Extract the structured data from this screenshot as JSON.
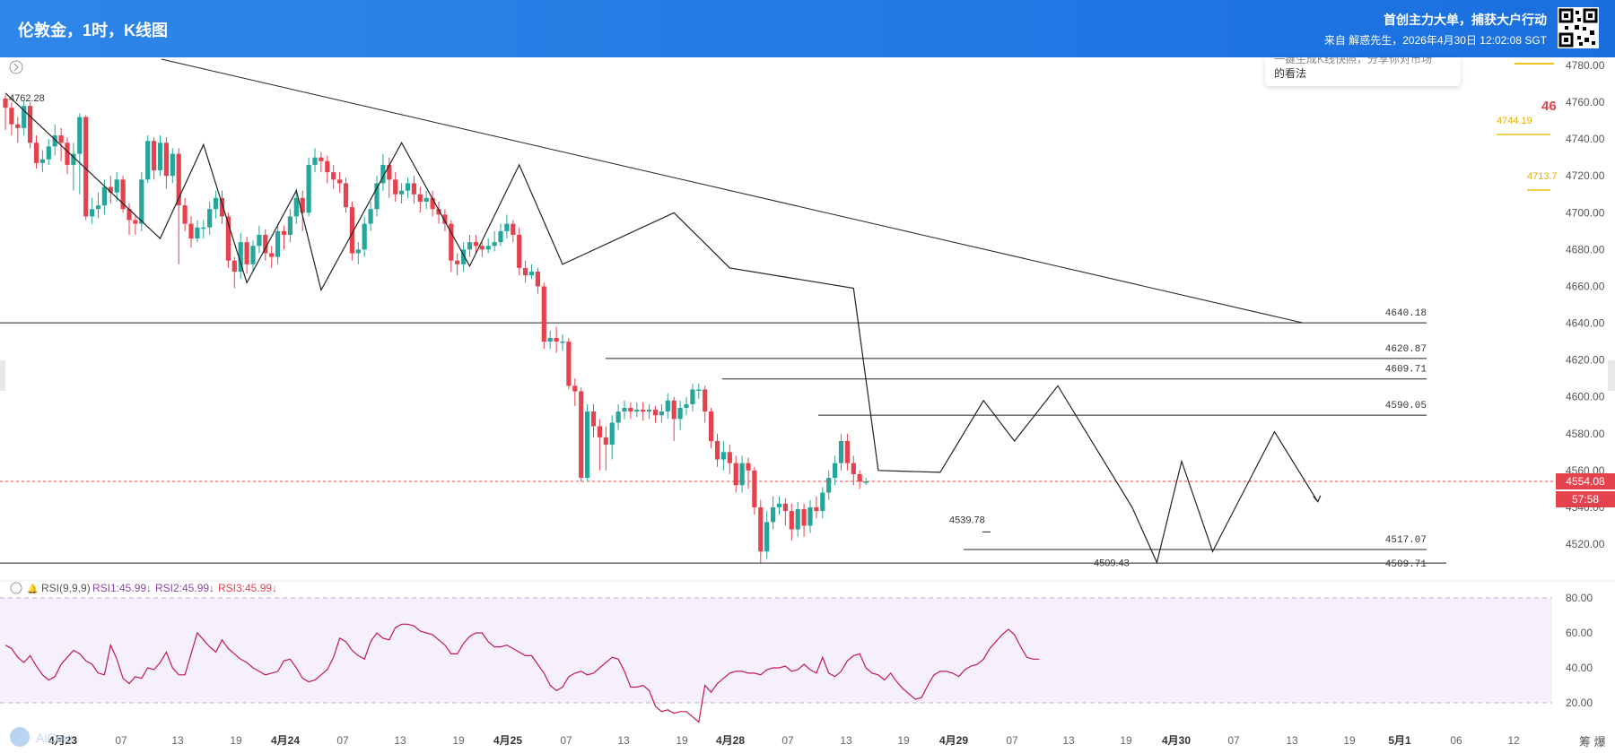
{
  "header": {
    "title": "伦敦金，1时，K线图",
    "promo": "首创主力大单，捕获大户行动",
    "source": "来自 解惑先生，2026年4月30日 12:02:08 SGT"
  },
  "popup": {
    "line1": "一键生成K线快照，分享你对市场",
    "line2": "的看法"
  },
  "colors": {
    "up": "#26a69a",
    "down": "#e5424e",
    "rsi_line": "#c2185b",
    "rsi_band": "#f5f0fb",
    "price_tag": "#e5424e"
  },
  "chart_data": [
    {
      "type": "candlestick",
      "symbol": "伦敦金",
      "interval": "1时",
      "ylim": [
        4500,
        4790
      ],
      "y_ticks": [
        4520,
        4540,
        4560,
        4580,
        4600,
        4620,
        4640,
        4660,
        4680,
        4700,
        4720,
        4740,
        4760,
        4780
      ],
      "y_tick_labels": [
        "4520.00",
        "4540.00",
        "4560.00",
        "4580.00",
        "4600.00",
        "4620.00",
        "4640.00",
        "4660.00",
        "4680.00",
        "4700.00",
        "4720.00",
        "4740.00",
        "4760.00",
        "4780.00"
      ],
      "x_tick_labels": [
        "4月23",
        "07",
        "13",
        "19",
        "4月24",
        "07",
        "13",
        "19",
        "4月25",
        "07",
        "13",
        "19",
        "4月28",
        "07",
        "13",
        "19",
        "4月29",
        "07",
        "13",
        "19",
        "4月30",
        "07",
        "13",
        "19",
        "5月1",
        "06",
        "12"
      ],
      "candles": [
        [
          4762,
          4757,
          4764,
          4745
        ],
        [
          4757,
          4748,
          4760,
          4742
        ],
        [
          4748,
          4746,
          4752,
          4738
        ],
        [
          4746,
          4758,
          4761,
          4742
        ],
        [
          4758,
          4738,
          4760,
          4735
        ],
        [
          4738,
          4727,
          4742,
          4724
        ],
        [
          4727,
          4729,
          4734,
          4722
        ],
        [
          4729,
          4736,
          4740,
          4726
        ],
        [
          4736,
          4742,
          4748,
          4731
        ],
        [
          4742,
          4738,
          4746,
          4728
        ],
        [
          4738,
          4726,
          4741,
          4721
        ],
        [
          4726,
          4732,
          4738,
          4712
        ],
        [
          4732,
          4752,
          4754,
          4710
        ],
        [
          4752,
          4698,
          4753,
          4696
        ],
        [
          4698,
          4702,
          4708,
          4694
        ],
        [
          4702,
          4704,
          4711,
          4697
        ],
        [
          4704,
          4714,
          4718,
          4699
        ],
        [
          4714,
          4711,
          4720,
          4705
        ],
        [
          4711,
          4718,
          4722,
          4706
        ],
        [
          4718,
          4702,
          4720,
          4700
        ],
        [
          4702,
          4696,
          4705,
          4688
        ],
        [
          4696,
          4694,
          4699,
          4688
        ],
        [
          4694,
          4718,
          4722,
          4690
        ],
        [
          4718,
          4739,
          4742,
          4716
        ],
        [
          4739,
          4723,
          4741,
          4718
        ],
        [
          4723,
          4738,
          4742,
          4720
        ],
        [
          4738,
          4720,
          4741,
          4713
        ],
        [
          4720,
          4732,
          4735,
          4716
        ],
        [
          4732,
          4704,
          4735,
          4672
        ],
        [
          4704,
          4694,
          4708,
          4690
        ],
        [
          4694,
          4686,
          4698,
          4681
        ],
        [
          4686,
          4692,
          4696,
          4684
        ],
        [
          4692,
          4692,
          4696,
          4686
        ],
        [
          4692,
          4702,
          4706,
          4688
        ],
        [
          4702,
          4708,
          4712,
          4697
        ],
        [
          4708,
          4698,
          4712,
          4694
        ],
        [
          4698,
          4674,
          4700,
          4670
        ],
        [
          4674,
          4668,
          4676,
          4659
        ],
        [
          4668,
          4684,
          4689,
          4664
        ],
        [
          4684,
          4672,
          4687,
          4667
        ],
        [
          4672,
          4682,
          4685,
          4668
        ],
        [
          4682,
          4688,
          4693,
          4678
        ],
        [
          4688,
          4678,
          4691,
          4674
        ],
        [
          4678,
          4676,
          4682,
          4670
        ],
        [
          4676,
          4690,
          4694,
          4672
        ],
        [
          4690,
          4688,
          4693,
          4680
        ],
        [
          4688,
          4698,
          4702,
          4684
        ],
        [
          4698,
          4708,
          4713,
          4694
        ],
        [
          4708,
          4700,
          4712,
          4690
        ],
        [
          4700,
          4726,
          4730,
          4698
        ],
        [
          4726,
          4730,
          4735,
          4722
        ],
        [
          4730,
          4728,
          4733,
          4722
        ],
        [
          4728,
          4722,
          4731,
          4716
        ],
        [
          4722,
          4718,
          4726,
          4713
        ],
        [
          4718,
          4716,
          4722,
          4711
        ],
        [
          4716,
          4703,
          4719,
          4700
        ],
        [
          4703,
          4678,
          4706,
          4674
        ],
        [
          4678,
          4680,
          4684,
          4672
        ],
        [
          4680,
          4694,
          4698,
          4676
        ],
        [
          4694,
          4702,
          4706,
          4690
        ],
        [
          4702,
          4716,
          4720,
          4698
        ],
        [
          4716,
          4726,
          4732,
          4712
        ],
        [
          4726,
          4718,
          4730,
          4708
        ],
        [
          4718,
          4710,
          4722,
          4706
        ],
        [
          4710,
          4712,
          4716,
          4705
        ],
        [
          4712,
          4716,
          4719,
          4708
        ],
        [
          4716,
          4710,
          4720,
          4705
        ],
        [
          4710,
          4706,
          4714,
          4700
        ],
        [
          4706,
          4708,
          4712,
          4702
        ],
        [
          4708,
          4702,
          4712,
          4698
        ],
        [
          4702,
          4699,
          4706,
          4694
        ],
        [
          4699,
          4694,
          4702,
          4690
        ],
        [
          4694,
          4674,
          4696,
          4668
        ],
        [
          4674,
          4672,
          4678,
          4666
        ],
        [
          4672,
          4680,
          4684,
          4668
        ],
        [
          4680,
          4684,
          4688,
          4676
        ],
        [
          4684,
          4682,
          4688,
          4678
        ],
        [
          4682,
          4680,
          4684,
          4676
        ],
        [
          4680,
          4682,
          4686,
          4678
        ],
        [
          4682,
          4684,
          4690,
          4679
        ],
        [
          4684,
          4690,
          4694,
          4682
        ],
        [
          4690,
          4694,
          4699,
          4686
        ],
        [
          4694,
          4688,
          4696,
          4684
        ],
        [
          4688,
          4670,
          4692,
          4666
        ],
        [
          4670,
          4666,
          4674,
          4662
        ],
        [
          4666,
          4668,
          4672,
          4664
        ],
        [
          4668,
          4660,
          4670,
          4656
        ],
        [
          4660,
          4630,
          4662,
          4626
        ],
        [
          4630,
          4632,
          4636,
          4626
        ],
        [
          4632,
          4630,
          4638,
          4624
        ],
        [
          4630,
          4630,
          4634,
          4625
        ],
        [
          4630,
          4606,
          4632,
          4604
        ],
        [
          4606,
          4603,
          4610,
          4595
        ],
        [
          4603,
          4556,
          4605,
          4554
        ],
        [
          4556,
          4592,
          4596,
          4554
        ],
        [
          4592,
          4584,
          4596,
          4578
        ],
        [
          4584,
          4578,
          4588,
          4560
        ],
        [
          4578,
          4574,
          4584,
          4560
        ],
        [
          4574,
          4586,
          4590,
          4566
        ],
        [
          4586,
          4592,
          4596,
          4582
        ],
        [
          4592,
          4594,
          4598,
          4588
        ],
        [
          4594,
          4592,
          4597,
          4588
        ],
        [
          4592,
          4593,
          4597,
          4589
        ],
        [
          4593,
          4592,
          4597,
          4587
        ],
        [
          4592,
          4593,
          4596,
          4588
        ],
        [
          4593,
          4590,
          4595,
          4586
        ],
        [
          4590,
          4592,
          4596,
          4586
        ],
        [
          4592,
          4598,
          4602,
          4588
        ],
        [
          4598,
          4588,
          4600,
          4576
        ],
        [
          4588,
          4594,
          4598,
          4582
        ],
        [
          4594,
          4596,
          4600,
          4590
        ],
        [
          4596,
          4604,
          4607,
          4592
        ],
        [
          4604,
          4604,
          4607,
          4599
        ],
        [
          4604,
          4592,
          4606,
          4586
        ],
        [
          4592,
          4576,
          4594,
          4572
        ],
        [
          4576,
          4566,
          4580,
          4562
        ],
        [
          4566,
          4570,
          4576,
          4560
        ],
        [
          4570,
          4564,
          4574,
          4558
        ],
        [
          4564,
          4552,
          4568,
          4548
        ],
        [
          4552,
          4564,
          4568,
          4548
        ],
        [
          4564,
          4560,
          4567,
          4550
        ],
        [
          4560,
          4540,
          4562,
          4536
        ],
        [
          4540,
          4516,
          4544,
          4510
        ],
        [
          4516,
          4532,
          4538,
          4512
        ],
        [
          4532,
          4540,
          4546,
          4528
        ],
        [
          4540,
          4542,
          4546,
          4536
        ],
        [
          4542,
          4538,
          4545,
          4530
        ],
        [
          4538,
          4528,
          4542,
          4522
        ],
        [
          4528,
          4539,
          4543,
          4524
        ],
        [
          4539,
          4530,
          4542,
          4524
        ],
        [
          4530,
          4540,
          4544,
          4526
        ],
        [
          4540,
          4538,
          4546,
          4534
        ],
        [
          4538,
          4548,
          4551,
          4534
        ],
        [
          4548,
          4556,
          4560,
          4544
        ],
        [
          4556,
          4564,
          4568,
          4552
        ],
        [
          4564,
          4576,
          4580,
          4560
        ],
        [
          4576,
          4564,
          4580,
          4560
        ],
        [
          4564,
          4558,
          4568,
          4552
        ],
        [
          4558,
          4554,
          4560,
          4550
        ],
        [
          4554,
          4554,
          4556,
          4552
        ]
      ],
      "last_price_label": "4554.08",
      "countdown_label": "57:58",
      "high_label": "4762.28",
      "low_label": "4509.43",
      "low_mark_label": "4539.78",
      "levels": [
        {
          "value": 4640.18,
          "label": "4640.18"
        },
        {
          "value": 4620.87,
          "label": "4620.87"
        },
        {
          "value": 4609.71,
          "label": "4609.71"
        },
        {
          "value": 4590.05,
          "label": "4590.05"
        },
        {
          "value": 4517.07,
          "label": "4517.07"
        },
        {
          "value": 4509.71,
          "label": "4509.71"
        }
      ],
      "side_labels": [
        "4744.19",
        "4713.7",
        "46"
      ],
      "zigzag": [
        [
          0,
          4765
        ],
        [
          25,
          4686
        ],
        [
          32,
          4737
        ],
        [
          39,
          4662
        ],
        [
          47,
          4712
        ],
        [
          51,
          4658
        ],
        [
          64,
          4738
        ],
        [
          75,
          4671
        ],
        [
          83,
          4726
        ],
        [
          90,
          4672
        ],
        [
          108,
          4700
        ],
        [
          117,
          4670
        ],
        [
          137,
          4659
        ],
        [
          141,
          4560
        ],
        [
          151,
          4559
        ],
        [
          158,
          4598
        ],
        [
          163,
          4576
        ],
        [
          170,
          4606
        ],
        [
          182,
          4540
        ],
        [
          186,
          4510
        ],
        [
          190,
          4565
        ],
        [
          195,
          4516
        ],
        [
          205,
          4581
        ],
        [
          212,
          4543
        ]
      ]
    },
    {
      "type": "line",
      "title": "RSI(9,9,9)",
      "series": [
        {
          "name": "RSI1:45.99↓",
          "color": "#8e44ad"
        },
        {
          "name": "RSI2:45.99↓",
          "color": "#8e44ad"
        },
        {
          "name": "RSI3:45.99↓",
          "color": "#e5424e"
        }
      ],
      "ylim": [
        10,
        90
      ],
      "y_ticks": [
        20,
        40,
        60,
        80
      ],
      "y_tick_labels": [
        "20.00",
        "40.00",
        "60.00",
        "80.00"
      ],
      "values": [
        53,
        51,
        46,
        43,
        47,
        41,
        36,
        33,
        35,
        42,
        46,
        50,
        48,
        44,
        42,
        37,
        36,
        53,
        45,
        34,
        31,
        35,
        34,
        40,
        39,
        43,
        49,
        40,
        36,
        36,
        48,
        60,
        56,
        52,
        49,
        56,
        51,
        48,
        45,
        43,
        40,
        38,
        36,
        37,
        38,
        44,
        45,
        40,
        34,
        32,
        33,
        36,
        39,
        46,
        57,
        55,
        50,
        47,
        45,
        55,
        60,
        57,
        56,
        63,
        65,
        65,
        64,
        61,
        60,
        59,
        56,
        53,
        48,
        48,
        54,
        58,
        60,
        60,
        55,
        52,
        52,
        53,
        51,
        49,
        47,
        47,
        42,
        37,
        30,
        27,
        29,
        35,
        37,
        38,
        36,
        37,
        40,
        43,
        46,
        45,
        38,
        29,
        29,
        30,
        27,
        18,
        15,
        16,
        14,
        15,
        15,
        12,
        9,
        30,
        26,
        31,
        34,
        37,
        38,
        38,
        37,
        37,
        36,
        39,
        40,
        40,
        41,
        38,
        39,
        42,
        39,
        37,
        46,
        37,
        35,
        38,
        44,
        47,
        48,
        40,
        37,
        36,
        33,
        37,
        32,
        28,
        25,
        22,
        23,
        30,
        36,
        38,
        38,
        37,
        35,
        39,
        41,
        42,
        45,
        51,
        55,
        59,
        62,
        59,
        52,
        46,
        45,
        45
      ]
    }
  ]
}
